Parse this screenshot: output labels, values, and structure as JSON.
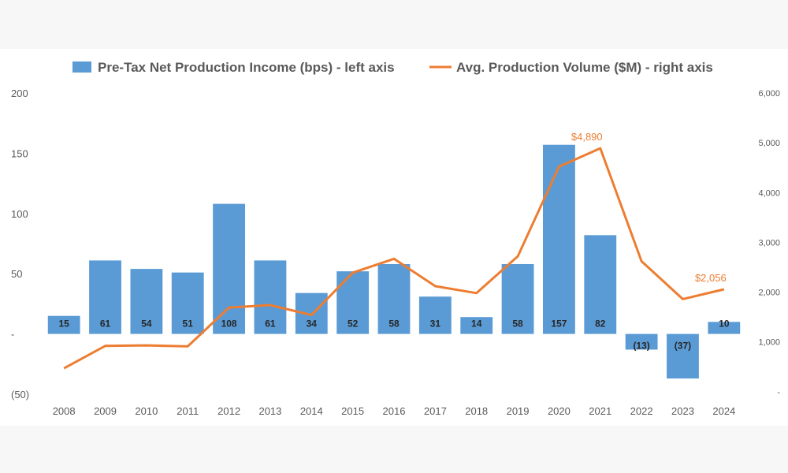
{
  "chart_data": {
    "type": "bar",
    "title": "",
    "xlabel": "",
    "ylabel": "",
    "categories": [
      "2008",
      "2009",
      "2010",
      "2011",
      "2012",
      "2013",
      "2014",
      "2015",
      "2016",
      "2017",
      "2018",
      "2019",
      "2020",
      "2021",
      "2022",
      "2023",
      "2024"
    ],
    "legend_position": "top",
    "grid": false,
    "series": [
      {
        "name": "Pre-Tax Net Production Income (bps) - left axis",
        "type": "bar",
        "axis": "left",
        "color": "#5b9bd5",
        "values": [
          15,
          61,
          54,
          51,
          108,
          61,
          34,
          52,
          58,
          31,
          14,
          58,
          157,
          82,
          -13,
          -37,
          10
        ],
        "labels": [
          "15",
          "61",
          "54",
          "51",
          "108",
          "61",
          "34",
          "52",
          "58",
          "31",
          "14",
          "58",
          "157",
          "82",
          "(13)",
          "(37)",
          "10"
        ]
      },
      {
        "name": "Avg. Production Volume ($M) - right axis",
        "type": "line",
        "axis": "right",
        "color": "#ed7d31",
        "values": [
          470,
          920,
          930,
          910,
          1690,
          1740,
          1540,
          2390,
          2670,
          2120,
          1980,
          2720,
          4520,
          4890,
          2620,
          1860,
          2056
        ],
        "point_labels": {
          "2021": "$4,890",
          "2024": "$2,056"
        }
      }
    ],
    "y_left": {
      "ylim": [
        -50,
        200
      ],
      "ticks": [
        200,
        150,
        100,
        50,
        0,
        -50
      ],
      "tick_labels": [
        "200",
        "150",
        "100",
        "50",
        "-",
        "(50)"
      ]
    },
    "y_right": {
      "ylim": [
        -50,
        6000
      ],
      "ticks": [
        6000,
        5000,
        4000,
        3000,
        2000,
        1000,
        0
      ],
      "tick_labels": [
        "6,000",
        "5,000",
        "4,000",
        "3,000",
        "2,000",
        "1,000",
        "-"
      ]
    }
  }
}
